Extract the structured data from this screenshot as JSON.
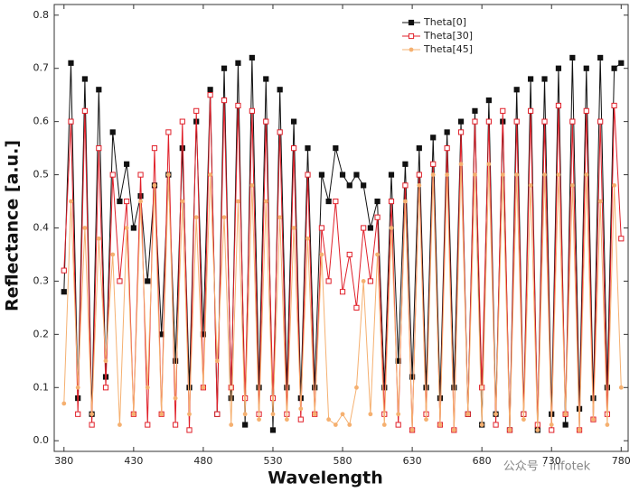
{
  "chart_data": {
    "type": "line",
    "xlabel": "Wavelength",
    "ylabel": "Reflectance [a.u.]",
    "x": [
      380,
      385,
      390,
      395,
      400,
      405,
      410,
      415,
      420,
      425,
      430,
      435,
      440,
      445,
      450,
      455,
      460,
      465,
      470,
      475,
      480,
      485,
      490,
      495,
      500,
      505,
      510,
      515,
      520,
      525,
      530,
      535,
      540,
      545,
      550,
      555,
      560,
      565,
      570,
      575,
      580,
      585,
      590,
      595,
      600,
      605,
      610,
      615,
      620,
      625,
      630,
      635,
      640,
      645,
      650,
      655,
      660,
      665,
      670,
      675,
      680,
      685,
      690,
      695,
      700,
      705,
      710,
      715,
      720,
      725,
      730,
      735,
      740,
      745,
      750,
      755,
      760,
      765,
      770,
      775,
      780
    ],
    "series": [
      {
        "name": "Theta[0]",
        "color": "#111111",
        "marker": "square",
        "values": [
          0.28,
          0.71,
          0.08,
          0.68,
          0.05,
          0.66,
          0.12,
          0.58,
          0.45,
          0.52,
          0.4,
          0.46,
          0.3,
          0.48,
          0.2,
          0.5,
          0.15,
          0.55,
          0.1,
          0.6,
          0.2,
          0.66,
          0.05,
          0.7,
          0.08,
          0.71,
          0.03,
          0.72,
          0.1,
          0.68,
          0.02,
          0.66,
          0.1,
          0.6,
          0.08,
          0.55,
          0.1,
          0.5,
          0.45,
          0.55,
          0.5,
          0.48,
          0.5,
          0.48,
          0.4,
          0.45,
          0.1,
          0.5,
          0.15,
          0.52,
          0.12,
          0.55,
          0.1,
          0.57,
          0.08,
          0.58,
          0.1,
          0.6,
          0.05,
          0.62,
          0.03,
          0.64,
          0.05,
          0.6,
          0.02,
          0.66,
          0.05,
          0.68,
          0.02,
          0.68,
          0.05,
          0.7,
          0.03,
          0.72,
          0.06,
          0.7,
          0.08,
          0.72,
          0.1,
          0.7,
          0.71
        ]
      },
      {
        "name": "Theta[30]",
        "color": "#e0202a",
        "marker": "open-square",
        "values": [
          0.32,
          0.6,
          0.05,
          0.62,
          0.03,
          0.55,
          0.1,
          0.5,
          0.3,
          0.45,
          0.05,
          0.5,
          0.03,
          0.55,
          0.05,
          0.58,
          0.03,
          0.6,
          0.02,
          0.62,
          0.1,
          0.65,
          0.05,
          0.64,
          0.1,
          0.63,
          0.08,
          0.62,
          0.05,
          0.6,
          0.08,
          0.58,
          0.05,
          0.55,
          0.04,
          0.5,
          0.05,
          0.4,
          0.3,
          0.45,
          0.28,
          0.35,
          0.25,
          0.4,
          0.3,
          0.42,
          0.05,
          0.45,
          0.03,
          0.48,
          0.02,
          0.5,
          0.05,
          0.52,
          0.03,
          0.55,
          0.02,
          0.58,
          0.05,
          0.6,
          0.1,
          0.6,
          0.03,
          0.62,
          0.02,
          0.6,
          0.05,
          0.62,
          0.03,
          0.6,
          0.02,
          0.63,
          0.05,
          0.6,
          0.02,
          0.62,
          0.04,
          0.6,
          0.05,
          0.63,
          0.38
        ]
      },
      {
        "name": "Theta[45]",
        "color": "#f5b070",
        "marker": "circle",
        "values": [
          0.07,
          0.45,
          0.1,
          0.4,
          0.05,
          0.38,
          0.15,
          0.35,
          0.03,
          0.4,
          0.05,
          0.45,
          0.1,
          0.48,
          0.05,
          0.5,
          0.08,
          0.45,
          0.05,
          0.42,
          0.1,
          0.5,
          0.15,
          0.42,
          0.03,
          0.45,
          0.05,
          0.48,
          0.04,
          0.45,
          0.05,
          0.42,
          0.04,
          0.4,
          0.06,
          0.38,
          0.05,
          0.35,
          0.04,
          0.03,
          0.05,
          0.03,
          0.1,
          0.3,
          0.05,
          0.35,
          0.03,
          0.4,
          0.05,
          0.45,
          0.02,
          0.48,
          0.04,
          0.5,
          0.03,
          0.5,
          0.02,
          0.52,
          0.05,
          0.5,
          0.03,
          0.52,
          0.05,
          0.5,
          0.02,
          0.5,
          0.04,
          0.48,
          0.02,
          0.5,
          0.03,
          0.5,
          0.05,
          0.48,
          0.02,
          0.5,
          0.04,
          0.45,
          0.03,
          0.48,
          0.1
        ]
      }
    ],
    "xlim": [
      373,
      785
    ],
    "xticks": [
      380,
      430,
      480,
      530,
      580,
      630,
      680,
      730,
      780
    ],
    "ylim": [
      -0.02,
      0.82
    ],
    "yticks": [
      {
        "value": 0,
        "label": "0.0"
      },
      0.1,
      0.2,
      0.3,
      0.4,
      0.5,
      0.6,
      0.7,
      0.8
    ],
    "legend": "upper right",
    "grid": false,
    "watermark": "公众号 · infotek"
  }
}
